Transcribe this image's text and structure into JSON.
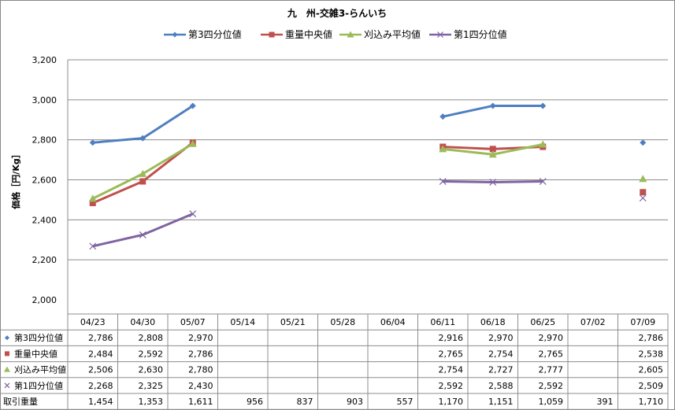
{
  "chart_data": {
    "type": "line",
    "title": "九　州-交雑3-らんいち",
    "ylabel": "価格［円/Kg］",
    "xlabel": "",
    "ylim": [
      2000,
      3200
    ],
    "yticks": [
      2000,
      2200,
      2400,
      2600,
      2800,
      3000,
      3200
    ],
    "ytick_labels": [
      "2,000",
      "2,200",
      "2,400",
      "2,600",
      "2,800",
      "3,000",
      "3,200"
    ],
    "grid": true,
    "legend_position": "top",
    "categories": [
      "04/23",
      "04/30",
      "05/07",
      "05/14",
      "05/21",
      "05/28",
      "06/04",
      "06/11",
      "06/18",
      "06/25",
      "07/02",
      "07/09"
    ],
    "series": [
      {
        "name": "第3四分位値",
        "color": "#4F7FC0",
        "marker": "diamond",
        "values": [
          2786,
          2808,
          2970,
          null,
          null,
          null,
          null,
          2916,
          2970,
          2970,
          null,
          2786
        ],
        "labels": [
          "2,786",
          "2,808",
          "2,970",
          "",
          "",
          "",
          "",
          "2,916",
          "2,970",
          "2,970",
          "",
          "2,786"
        ]
      },
      {
        "name": "重量中央値",
        "color": "#C0504D",
        "marker": "square",
        "values": [
          2484,
          2592,
          2786,
          null,
          null,
          null,
          null,
          2765,
          2754,
          2765,
          null,
          2538
        ],
        "labels": [
          "2,484",
          "2,592",
          "2,786",
          "",
          "",
          "",
          "",
          "2,765",
          "2,754",
          "2,765",
          "",
          "2,538"
        ]
      },
      {
        "name": "刈込み平均値",
        "color": "#9BBB59",
        "marker": "triangle",
        "values": [
          2506,
          2630,
          2780,
          null,
          null,
          null,
          null,
          2754,
          2727,
          2777,
          null,
          2605
        ],
        "labels": [
          "2,506",
          "2,630",
          "2,780",
          "",
          "",
          "",
          "",
          "2,754",
          "2,727",
          "2,777",
          "",
          "2,605"
        ]
      },
      {
        "name": "第1四分位値",
        "color": "#8064A2",
        "marker": "x",
        "values": [
          2268,
          2325,
          2430,
          null,
          null,
          null,
          null,
          2592,
          2588,
          2592,
          null,
          2509
        ],
        "labels": [
          "2,268",
          "2,325",
          "2,430",
          "",
          "",
          "",
          "",
          "2,592",
          "2,588",
          "2,592",
          "",
          "2,509"
        ]
      }
    ],
    "table_extra_row": {
      "name": "取引重量",
      "labels": [
        "1,454",
        "1,353",
        "1,611",
        "956",
        "837",
        "903",
        "557",
        "1,170",
        "1,151",
        "1,059",
        "391",
        "1,710"
      ]
    }
  }
}
